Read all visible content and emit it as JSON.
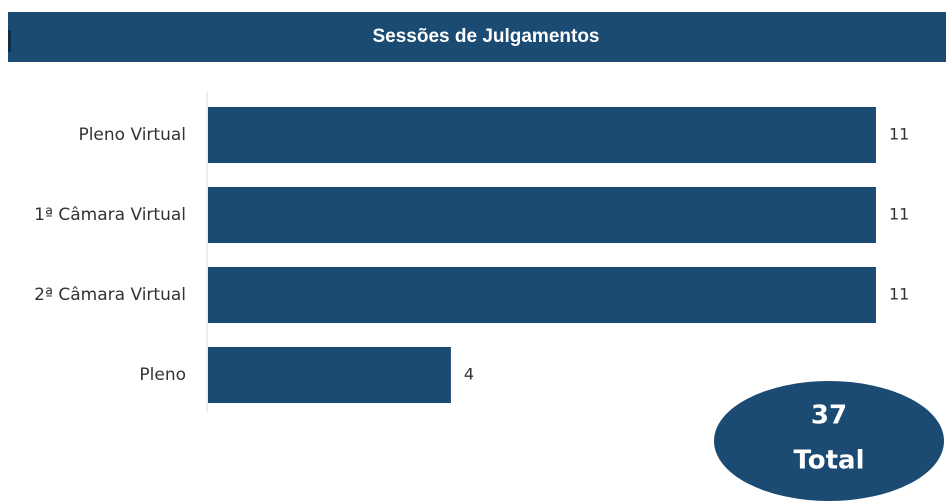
{
  "chart_data": {
    "type": "barh",
    "title": "Sessões de Julgamentos",
    "categories": [
      "Pleno Virtual",
      "1ª Câmara Virtual",
      "2ª Câmara Virtual",
      "Pleno"
    ],
    "values": [
      11,
      11,
      11,
      4
    ],
    "color": "#1b4a73",
    "xlim": [
      0,
      11
    ],
    "total": {
      "value": 37,
      "label": "Total"
    }
  }
}
